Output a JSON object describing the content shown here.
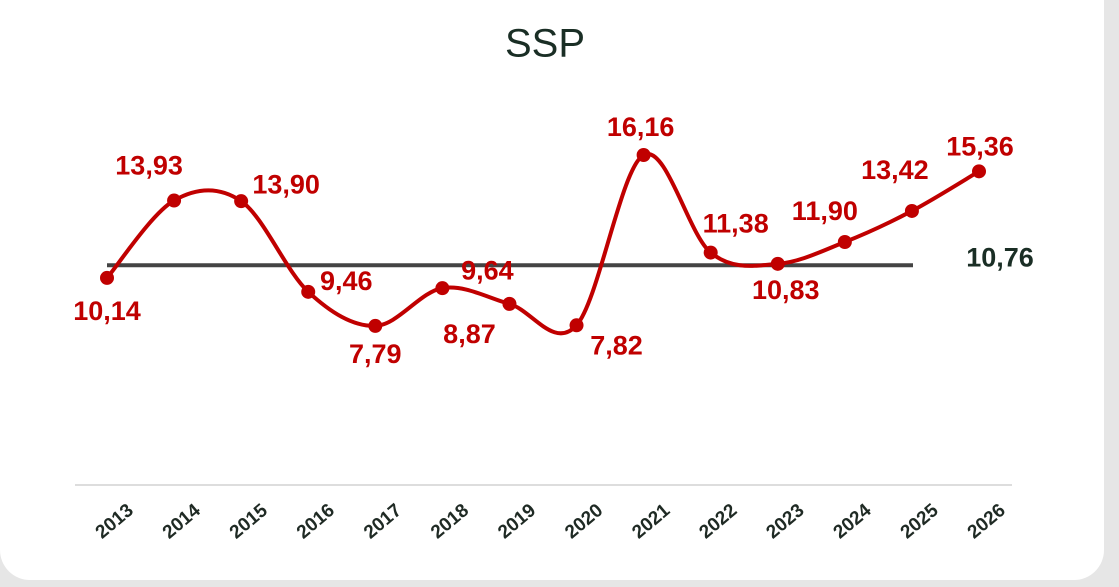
{
  "chart_data": {
    "type": "line",
    "title": "SSP",
    "categories": [
      "2013",
      "2014",
      "2015",
      "2016",
      "2017",
      "2018",
      "2019",
      "2020",
      "2021",
      "2022",
      "2023",
      "2024",
      "2025",
      "2026"
    ],
    "series": [
      {
        "name": "SSP",
        "color": "#c00000",
        "values": [
          10.14,
          13.93,
          13.9,
          9.46,
          7.79,
          9.64,
          8.87,
          7.82,
          16.16,
          11.38,
          10.83,
          11.9,
          13.42,
          15.36
        ],
        "value_labels": [
          "10,14",
          "13,93",
          "13,90",
          "9,46",
          "7,79",
          "9,64",
          "8,87",
          "7,82",
          "16,16",
          "11,38",
          "10,83",
          "11,90",
          "13,42",
          "15,36"
        ]
      }
    ],
    "average": {
      "value": 10.76,
      "label": "10,76",
      "color": "#444444"
    },
    "ylim": [
      0,
      19
    ]
  }
}
